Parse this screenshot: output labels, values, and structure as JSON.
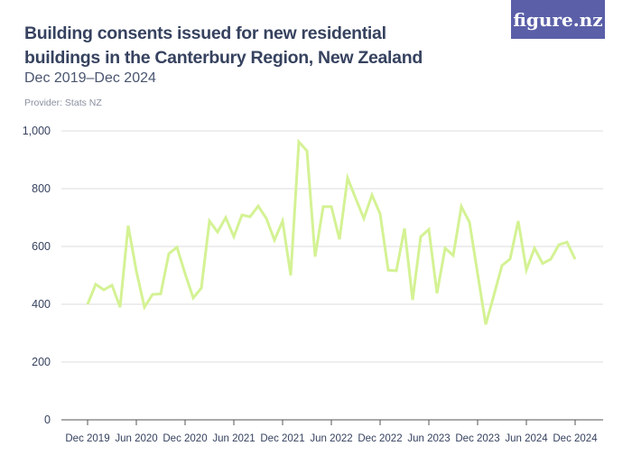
{
  "logo": "figure.nz",
  "chart_data": {
    "type": "line",
    "title": "Building consents issued for new residential buildings in the Canterbury Region, New Zealand",
    "subtitle": "Dec 2019–Dec 2024",
    "provider": "Provider: Stats NZ",
    "xlabel": "",
    "ylabel": "",
    "ylim": [
      0,
      1000
    ],
    "yticks": [
      0,
      200,
      400,
      600,
      800,
      1000
    ],
    "ytick_labels": [
      "0",
      "200",
      "400",
      "600",
      "800",
      "1,000"
    ],
    "xtick_labels": [
      "Dec 2019",
      "Jun 2020",
      "Dec 2020",
      "Jun 2021",
      "Dec 2021",
      "Jun 2022",
      "Dec 2022",
      "Jun 2023",
      "Dec 2023",
      "Jun 2024",
      "Dec 2024"
    ],
    "grid": true,
    "color": "#d4f294",
    "series": [
      {
        "name": "Building consents",
        "start": "Dec 2019",
        "frequency": "monthly",
        "values": [
          400,
          469,
          450,
          466,
          390,
          672,
          515,
          390,
          434,
          436,
          575,
          597,
          506,
          422,
          456,
          688,
          650,
          700,
          634,
          709,
          703,
          740,
          697,
          622,
          688,
          500,
          962,
          931,
          565,
          738,
          738,
          625,
          837,
          766,
          697,
          778,
          713,
          518,
          516,
          662,
          415,
          634,
          659,
          438,
          594,
          569,
          738,
          684,
          506,
          330,
          431,
          534,
          557,
          688,
          519,
          594,
          541,
          556,
          606,
          615,
          556
        ]
      }
    ]
  }
}
